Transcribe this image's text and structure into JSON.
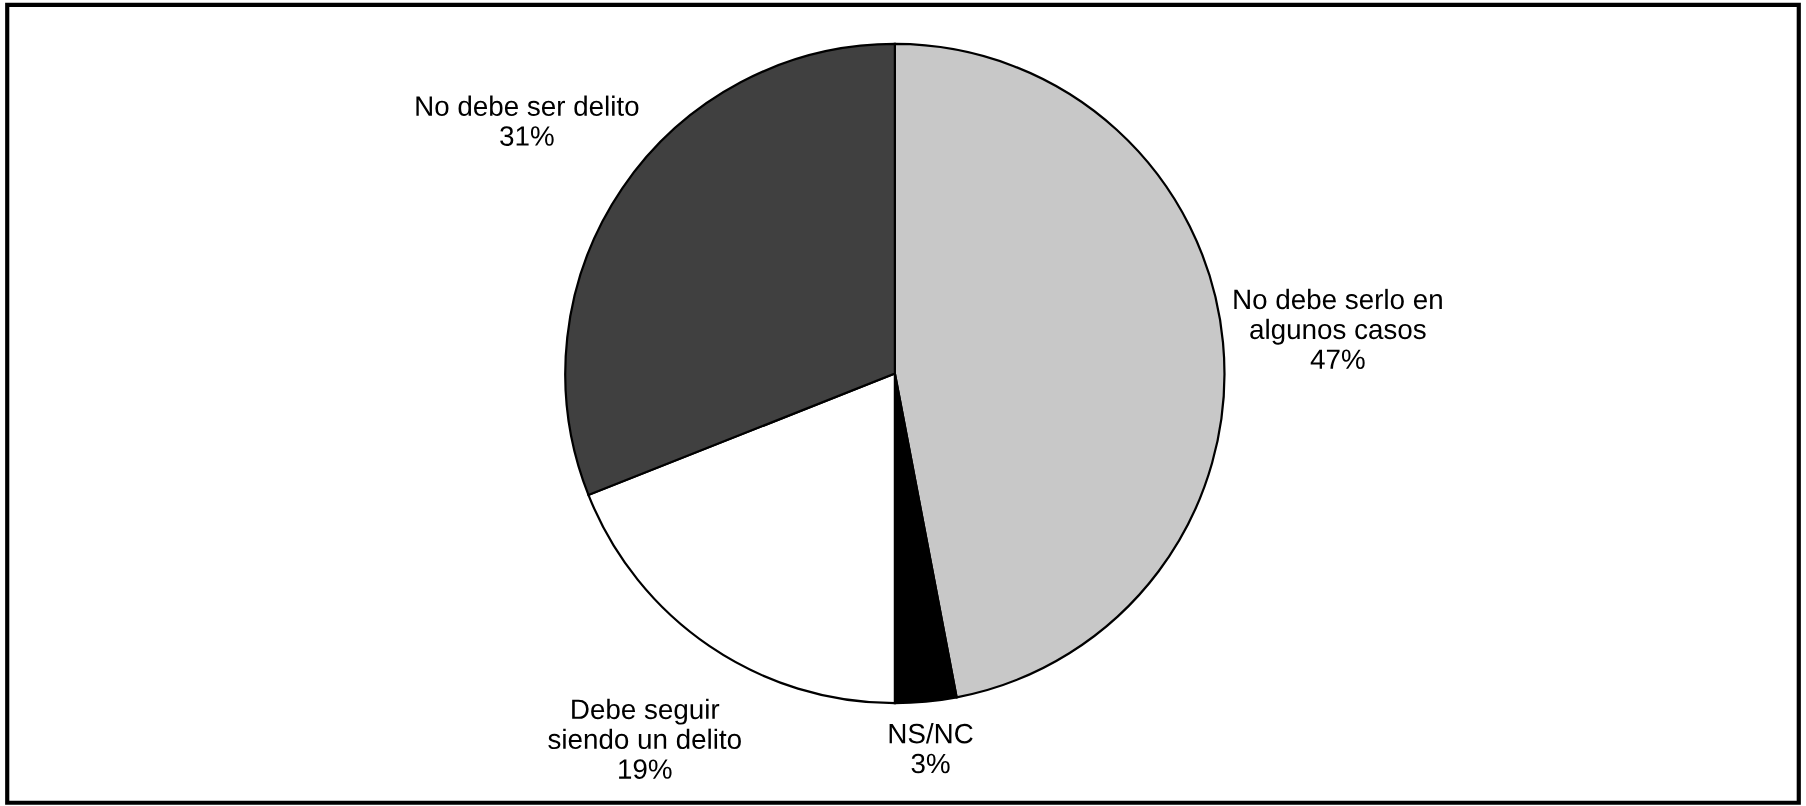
{
  "chart_data": {
    "type": "pie",
    "categories": [
      "No debe serlo en\nalgunos casos",
      "NS/NC",
      "Debe seguir\nsiendo un delito",
      "No debe ser delito"
    ],
    "values": [
      47,
      3,
      19,
      31
    ],
    "colors": [
      "#c8c8c8",
      "#000000",
      "#ffffff",
      "#404040"
    ],
    "value_labels": [
      "47%",
      "3%",
      "19%",
      "31%"
    ]
  }
}
